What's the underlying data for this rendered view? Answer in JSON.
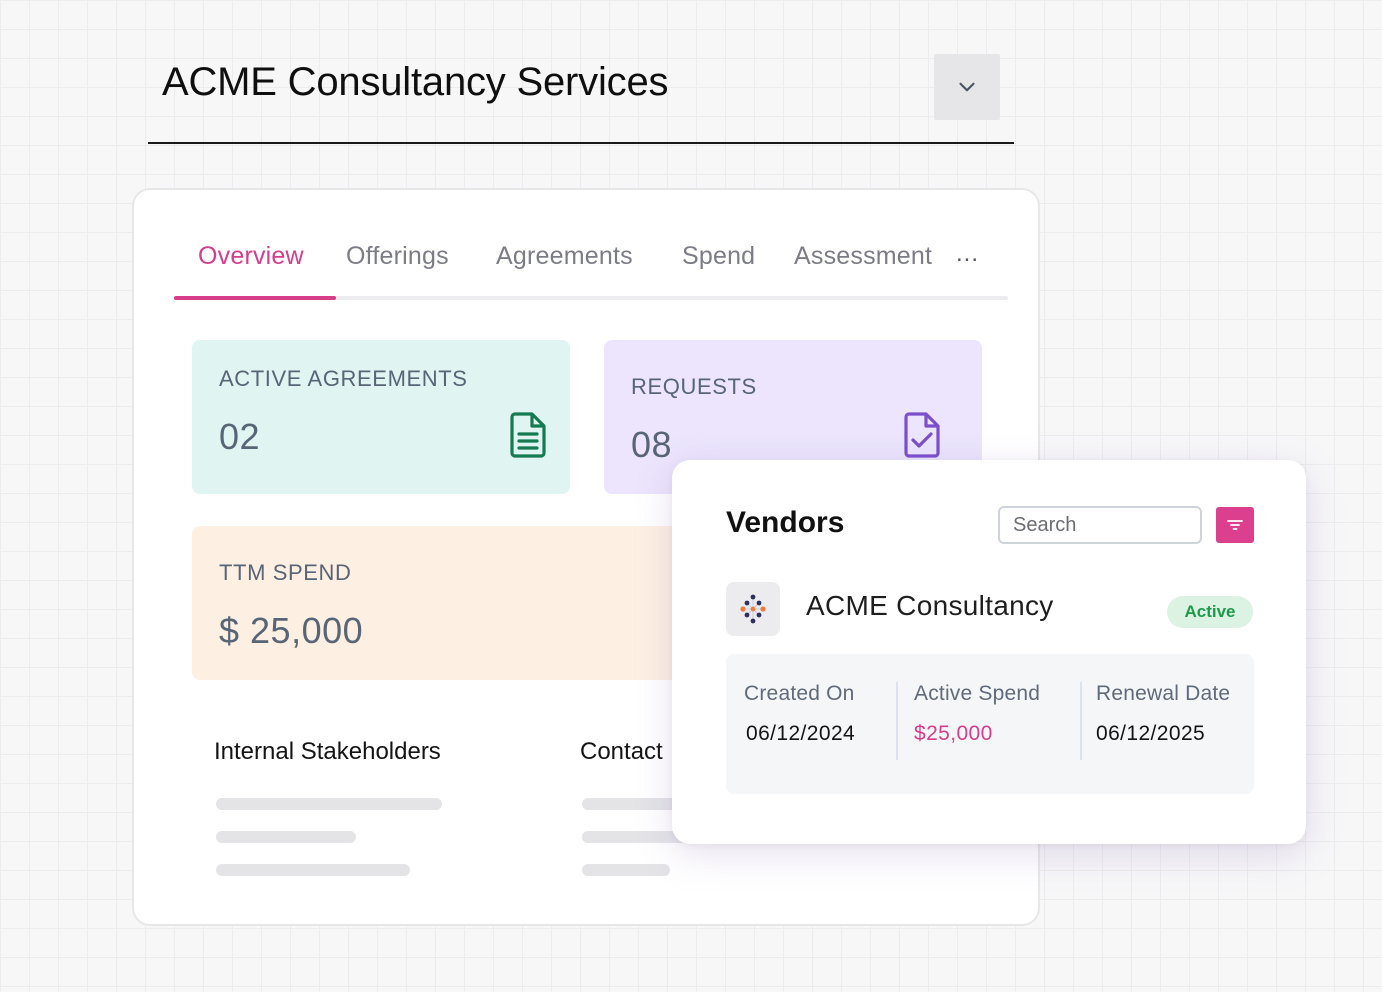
{
  "header": {
    "title": "ACME Consultancy Services",
    "toggle_icon": "chevron-down-icon"
  },
  "tabs": [
    {
      "label": "Overview",
      "active": true
    },
    {
      "label": "Offerings",
      "active": false
    },
    {
      "label": "Agreements",
      "active": false
    },
    {
      "label": "Spend",
      "active": false
    },
    {
      "label": "Assessment",
      "active": false
    }
  ],
  "tabs_more": "...",
  "stats": {
    "active_agreements": {
      "label": "ACTIVE AGREEMENTS",
      "value": "02",
      "icon": "document-icon",
      "bg": "#e0f4f1",
      "icon_color": "#147a52"
    },
    "requests": {
      "label": "REQUESTS",
      "value": "08",
      "icon": "document-check-icon",
      "bg": "#ece5fd",
      "icon_color": "#7b4fcc"
    },
    "ttm_spend": {
      "label": "TTM SPEND",
      "value": "$ 25,000",
      "bg": "#fdf0e3"
    }
  },
  "sections": {
    "internal_stakeholders": "Internal Stakeholders",
    "contacts": "Contact"
  },
  "vendors": {
    "title": "Vendors",
    "search_placeholder": "Search",
    "filter_icon": "filter-icon",
    "vendor": {
      "name": "ACME Consultancy",
      "status": "Active",
      "logo_icon": "network-logo-icon",
      "details": {
        "created_on": {
          "label": "Created On",
          "value": "06/12/2024"
        },
        "active_spend": {
          "label": "Active Spend",
          "value": "$25,000"
        },
        "renewal_date": {
          "label": "Renewal Date",
          "value": "06/12/2025"
        }
      }
    }
  },
  "colors": {
    "accent": "#d63d8b",
    "status_green": "#1c9a4a",
    "status_green_bg": "#dcf3e4"
  }
}
